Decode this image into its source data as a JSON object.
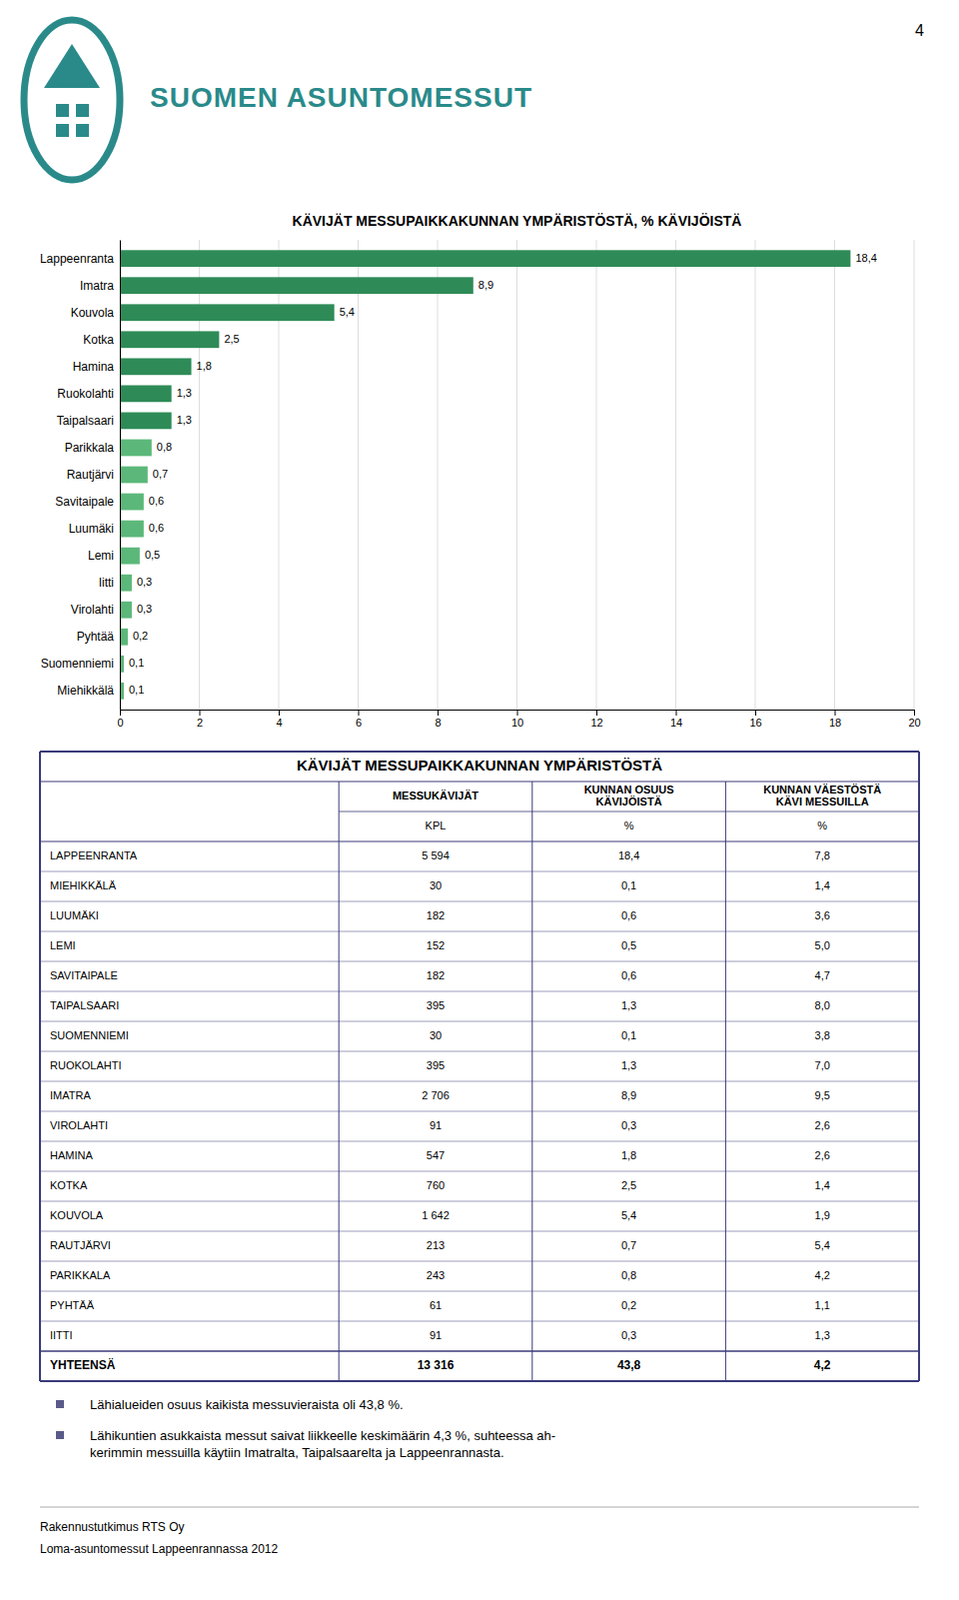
{
  "page_number": "4",
  "logo_text": "SUOMEN ASUNTOMESSUT",
  "chart_data": {
    "type": "bar",
    "orientation": "horizontal",
    "title": "KÄVIJÄT MESSUPAIKKAKUNNAN YMPÄRISTÖSTÄ, % KÄVIJÖISTÄ",
    "categories": [
      "Lappeenranta",
      "Imatra",
      "Kouvola",
      "Kotka",
      "Hamina",
      "Ruokolahti",
      "Taipalsaari",
      "Parikkala",
      "Rautjärvi",
      "Savitaipale",
      "Luumäki",
      "Lemi",
      "Iitti",
      "Virolahti",
      "Pyhtää",
      "Suomenniemi",
      "Miehikkälä"
    ],
    "values": [
      18.4,
      8.9,
      5.4,
      2.5,
      1.8,
      1.3,
      1.3,
      0.8,
      0.7,
      0.6,
      0.6,
      0.5,
      0.3,
      0.3,
      0.2,
      0.1,
      0.1
    ],
    "value_labels": [
      "18,4",
      "8,9",
      "5,4",
      "2,5",
      "1,8",
      "1,3",
      "1,3",
      "0,8",
      "0,7",
      "0,6",
      "0,6",
      "0,5",
      "0,3",
      "0,3",
      "0,2",
      "0,1",
      "0,1"
    ],
    "data_labels": true,
    "colors": [
      "#2e8b57",
      "#2e8b57",
      "#2e8b57",
      "#2e8b57",
      "#2e8b57",
      "#2e8b57",
      "#2e8b57",
      "#5cb87a",
      "#5cb87a",
      "#5cb87a",
      "#5cb87a",
      "#5cb87a",
      "#5cb87a",
      "#5cb87a",
      "#5cb87a",
      "#5cb87a",
      "#5cb87a"
    ],
    "xlim": [
      0,
      20
    ],
    "xticks": [
      0,
      2,
      4,
      6,
      8,
      10,
      12,
      14,
      16,
      18,
      20
    ],
    "grid": true
  },
  "table": {
    "title": "KÄVIJÄT MESSUPAIKKAKUNNAN YMPÄRISTÖSTÄ",
    "columns": [
      {
        "header": "MESSUKÄVIJÄT",
        "sub": "KPL"
      },
      {
        "header": "KUNNAN OSUUS\nKÄVIJÖISTÄ",
        "sub": "%"
      },
      {
        "header": "KUNNAN VÄESTÖSTÄ\nKÄVI MESSUILLA",
        "sub": "%"
      }
    ],
    "rows": [
      [
        "LAPPEENRANTA",
        "5 594",
        "18,4",
        "7,8"
      ],
      [
        "MIEHIKKÄLÄ",
        "30",
        "0,1",
        "1,4"
      ],
      [
        "LUUMÄKI",
        "182",
        "0,6",
        "3,6"
      ],
      [
        "LEMI",
        "152",
        "0,5",
        "5,0"
      ],
      [
        "SAVITAIPALE",
        "182",
        "0,6",
        "4,7"
      ],
      [
        "TAIPALSAARI",
        "395",
        "1,3",
        "8,0"
      ],
      [
        "SUOMENNIEMI",
        "30",
        "0,1",
        "3,8"
      ],
      [
        "RUOKOLAHTI",
        "395",
        "1,3",
        "7,0"
      ],
      [
        "IMATRA",
        "2 706",
        "8,9",
        "9,5"
      ],
      [
        "VIROLAHTI",
        "91",
        "0,3",
        "2,6"
      ],
      [
        "HAMINA",
        "547",
        "1,8",
        "2,6"
      ],
      [
        "KOTKA",
        "760",
        "2,5",
        "1,4"
      ],
      [
        "KOUVOLA",
        "1 642",
        "5,4",
        "1,9"
      ],
      [
        "RAUTJÄRVI",
        "213",
        "0,7",
        "5,4"
      ],
      [
        "PARIKKALA",
        "243",
        "0,8",
        "4,2"
      ],
      [
        "PYHTÄÄ",
        "61",
        "0,2",
        "1,1"
      ],
      [
        "IITTI",
        "91",
        "0,3",
        "1,3"
      ]
    ],
    "total_row": [
      "YHTEENSÄ",
      "13 316",
      "43,8",
      "4,2"
    ]
  },
  "bullets": [
    "Lähialueiden osuus kaikista messuvieraista oli 43,8 %.",
    "Lähikuntien asukkaista messut saivat liikkeelle keskimäärin 4,3 %, suhteessa ah-\nkerimmin messuilla käytiin Imatralta, Taipalsaarelta ja Lappeenrannasta."
  ],
  "footer": [
    "Rakennustutkimus RTS Oy",
    "Loma-asuntomessut Lappeenrannassa 2012"
  ]
}
